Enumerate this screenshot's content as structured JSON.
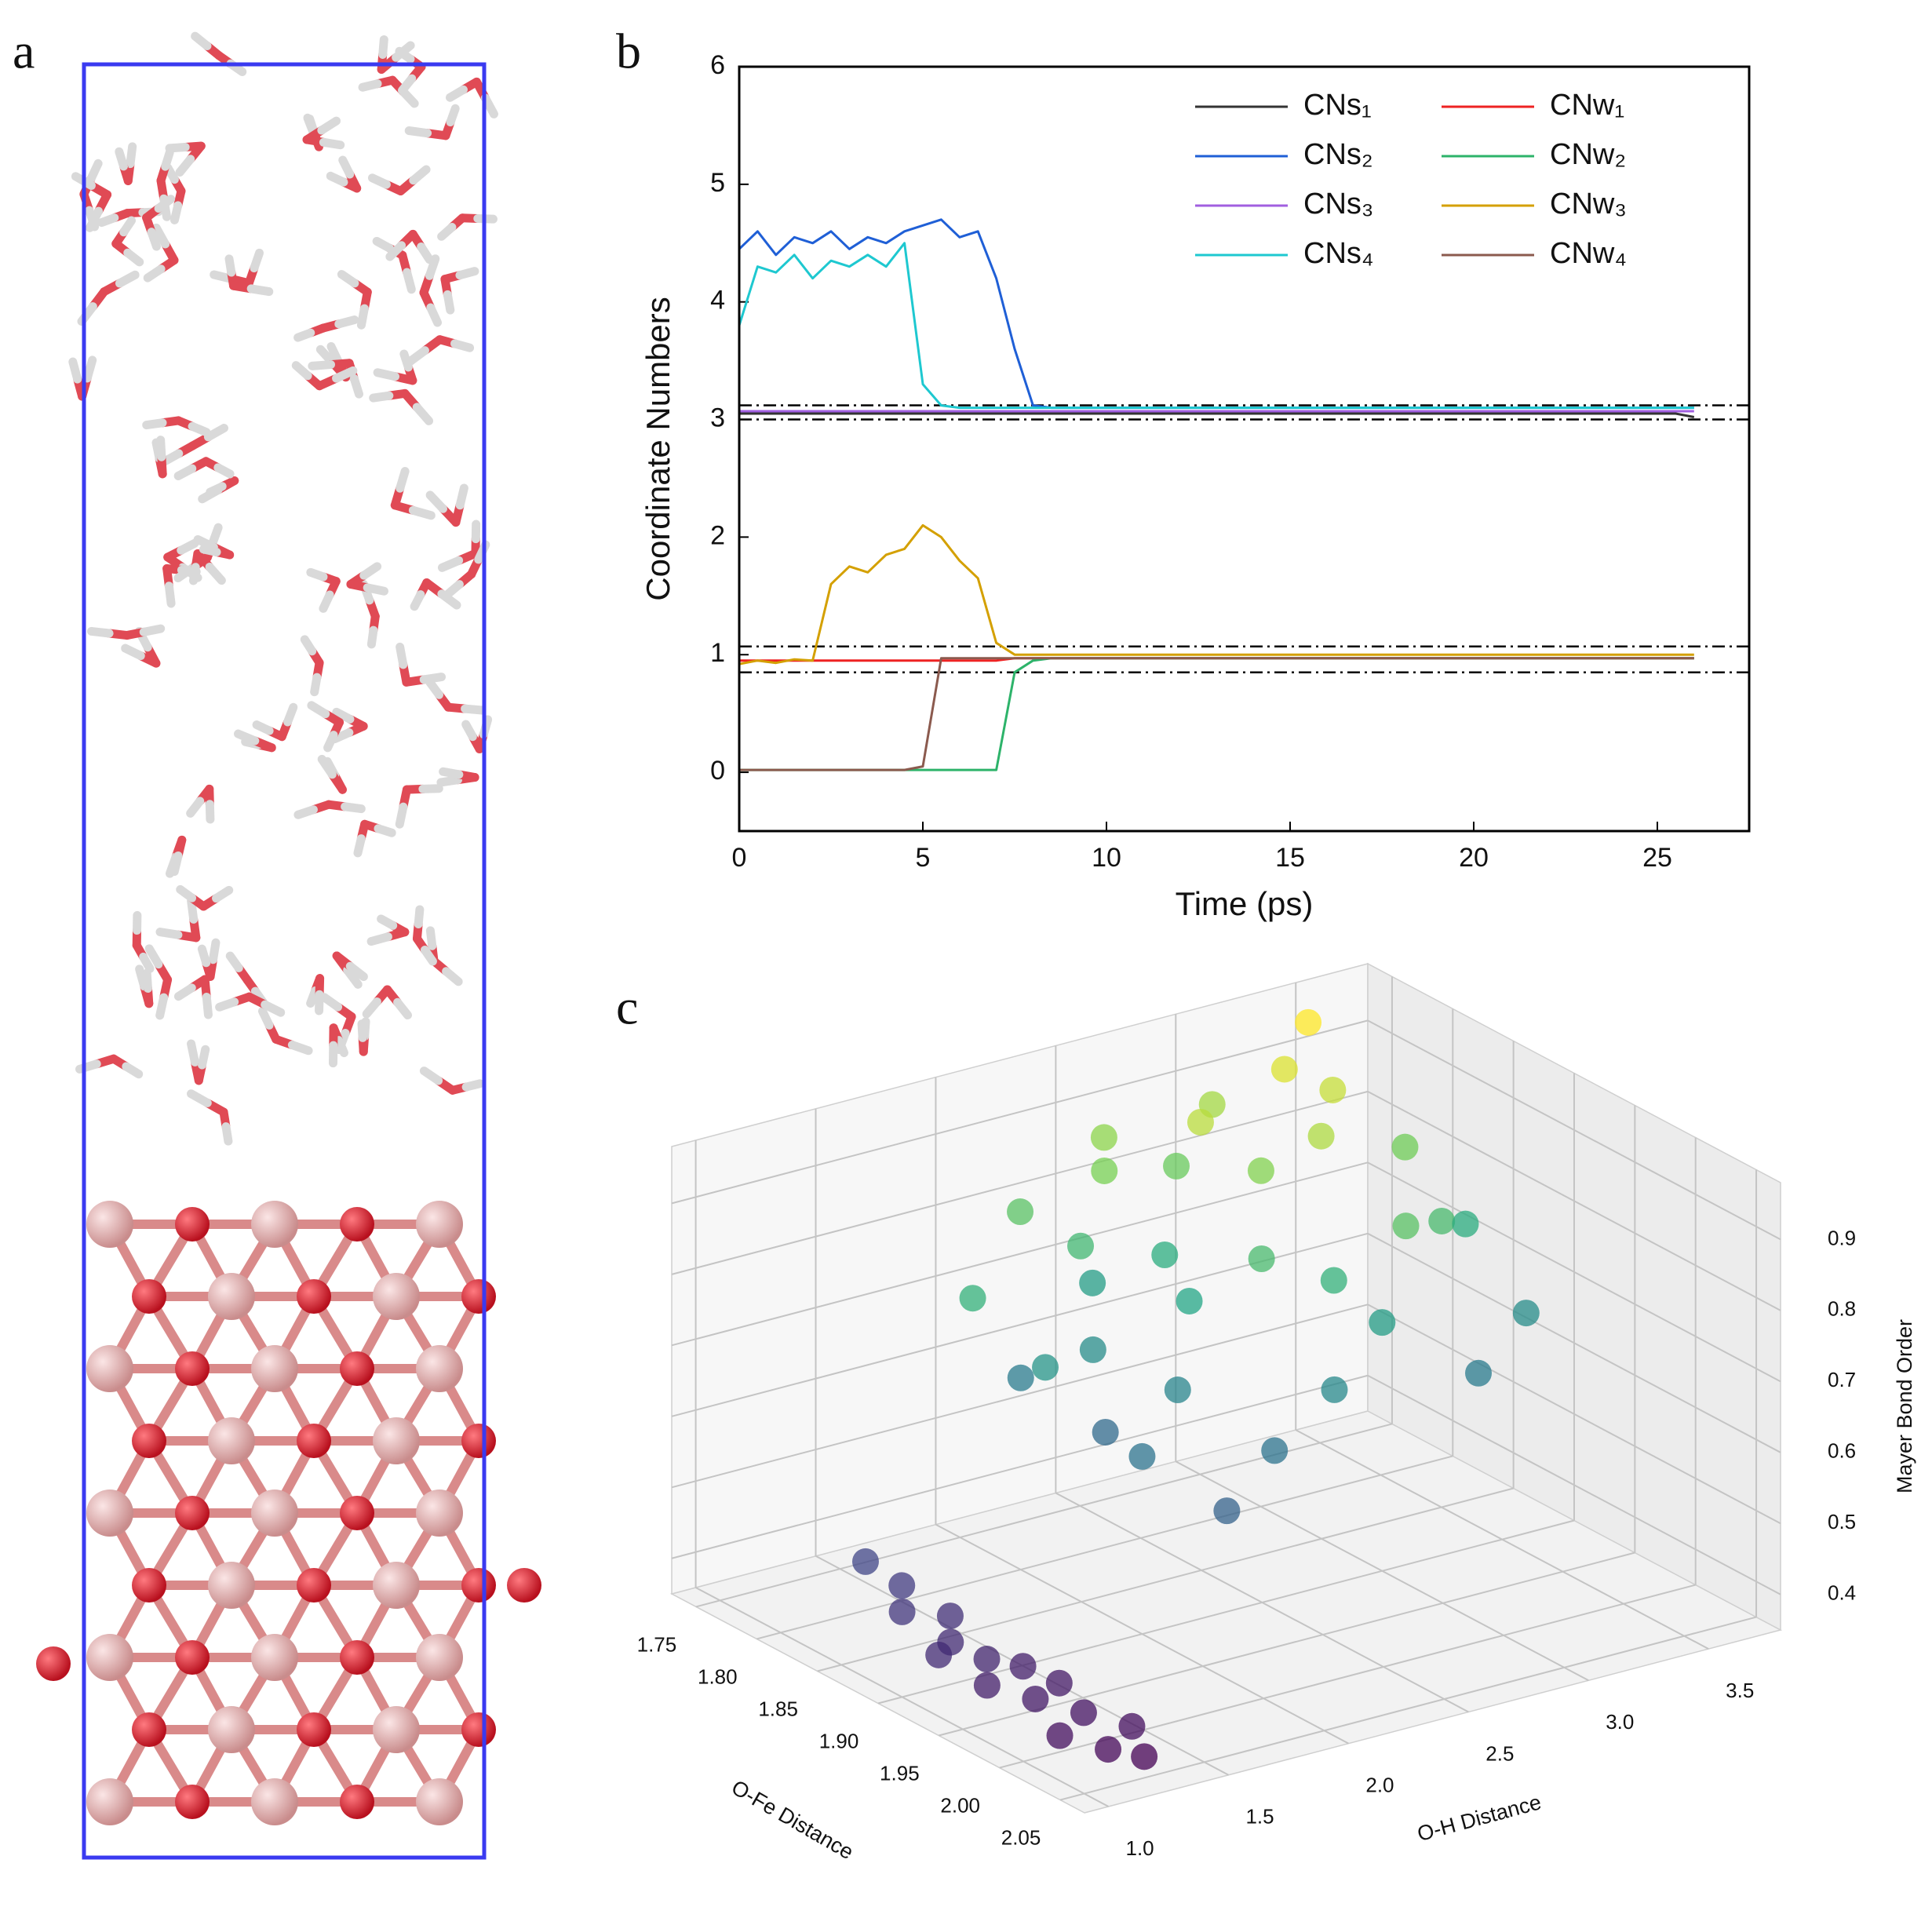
{
  "panel_a": {
    "label": "a"
  },
  "chart_data": [
    {
      "type": "line",
      "panel_label": "b",
      "xlabel": "Time (ps)",
      "ylabel": "Coordinate Numbers",
      "xlim": [
        0,
        27.5
      ],
      "ylim": [
        -0.5,
        6
      ],
      "xticks": [
        0,
        5,
        10,
        15,
        20,
        25
      ],
      "yticks": [
        0,
        1,
        2,
        3,
        4,
        5,
        6
      ],
      "reference_lines": [
        3.12,
        3.0,
        1.07,
        0.85
      ],
      "legend": "upper right",
      "x": [
        0,
        0.5,
        1,
        1.5,
        2,
        2.5,
        3,
        3.5,
        4,
        4.5,
        5,
        5.5,
        6,
        6.5,
        7,
        7.5,
        8,
        8.5,
        9,
        9.5,
        10,
        10.5,
        11,
        11.5,
        12,
        12.5,
        13,
        13.5,
        14,
        14.5,
        15,
        15.5,
        16,
        16.5,
        17,
        17.5,
        18,
        18.5,
        19,
        19.5,
        20,
        20.5,
        21,
        21.5,
        22,
        22.5,
        23,
        23.5,
        24,
        24.5,
        25,
        25.5,
        26
      ],
      "series": [
        {
          "name": "CNs₁",
          "color": "#333333",
          "values": [
            3.05,
            3.05,
            3.05,
            3.05,
            3.05,
            3.05,
            3.05,
            3.05,
            3.05,
            3.05,
            3.05,
            3.05,
            3.05,
            3.05,
            3.05,
            3.05,
            3.05,
            3.05,
            3.05,
            3.05,
            3.05,
            3.05,
            3.05,
            3.05,
            3.05,
            3.05,
            3.05,
            3.05,
            3.05,
            3.05,
            3.05,
            3.05,
            3.05,
            3.05,
            3.05,
            3.05,
            3.05,
            3.05,
            3.05,
            3.05,
            3.05,
            3.05,
            3.05,
            3.05,
            3.05,
            3.05,
            3.05,
            3.05,
            3.05,
            3.05,
            3.05,
            3.05,
            3.02
          ]
        },
        {
          "name": "CNs₂",
          "color": "#1f5fd6",
          "values": [
            4.45,
            4.6,
            4.4,
            4.55,
            4.5,
            4.6,
            4.45,
            4.55,
            4.5,
            4.6,
            4.65,
            4.7,
            4.55,
            4.6,
            4.2,
            3.6,
            3.12,
            3.1,
            3.1,
            3.1,
            3.1,
            3.1,
            3.1,
            3.1,
            3.1,
            3.1,
            3.1,
            3.1,
            3.1,
            3.1,
            3.1,
            3.1,
            3.1,
            3.1,
            3.1,
            3.1,
            3.1,
            3.1,
            3.1,
            3.1,
            3.1,
            3.1,
            3.1,
            3.1,
            3.1,
            3.1,
            3.1,
            3.1,
            3.1,
            3.1,
            3.1,
            3.1,
            3.1
          ]
        },
        {
          "name": "CNs₃",
          "color": "#a15fe0",
          "values": [
            3.07,
            3.07,
            3.07,
            3.07,
            3.07,
            3.07,
            3.07,
            3.07,
            3.07,
            3.07,
            3.07,
            3.07,
            3.07,
            3.07,
            3.07,
            3.07,
            3.07,
            3.07,
            3.07,
            3.07,
            3.07,
            3.07,
            3.07,
            3.07,
            3.07,
            3.07,
            3.07,
            3.07,
            3.07,
            3.07,
            3.07,
            3.07,
            3.07,
            3.07,
            3.07,
            3.07,
            3.07,
            3.07,
            3.07,
            3.07,
            3.07,
            3.07,
            3.07,
            3.07,
            3.07,
            3.07,
            3.07,
            3.07,
            3.07,
            3.07,
            3.07,
            3.07,
            3.07
          ]
        },
        {
          "name": "CNs₄",
          "color": "#1ec8d0",
          "values": [
            3.8,
            4.3,
            4.25,
            4.4,
            4.2,
            4.35,
            4.3,
            4.4,
            4.3,
            4.5,
            3.3,
            3.12,
            3.1,
            3.1,
            3.1,
            3.1,
            3.1,
            3.1,
            3.1,
            3.1,
            3.1,
            3.1,
            3.1,
            3.1,
            3.1,
            3.1,
            3.1,
            3.1,
            3.1,
            3.1,
            3.1,
            3.1,
            3.1,
            3.1,
            3.1,
            3.1,
            3.1,
            3.1,
            3.1,
            3.1,
            3.1,
            3.1,
            3.1,
            3.1,
            3.1,
            3.1,
            3.1,
            3.1,
            3.1,
            3.1,
            3.1,
            3.1,
            3.1
          ]
        },
        {
          "name": "CNw₁",
          "color": "#ee2222",
          "values": [
            0.95,
            0.95,
            0.95,
            0.95,
            0.95,
            0.95,
            0.95,
            0.95,
            0.95,
            0.95,
            0.95,
            0.95,
            0.95,
            0.95,
            0.95,
            0.97,
            0.97,
            0.97,
            0.97,
            0.97,
            0.97,
            0.97,
            0.97,
            0.97,
            0.97,
            0.97,
            0.97,
            0.97,
            0.97,
            0.97,
            0.97,
            0.97,
            0.97,
            0.97,
            0.97,
            0.97,
            0.97,
            0.97,
            0.97,
            0.97,
            0.97,
            0.97,
            0.97,
            0.97,
            0.97,
            0.97,
            0.97,
            0.97,
            0.97,
            0.97,
            0.97,
            0.97,
            0.97
          ]
        },
        {
          "name": "CNw₂",
          "color": "#2db36a",
          "values": [
            0.02,
            0.02,
            0.02,
            0.02,
            0.02,
            0.02,
            0.02,
            0.02,
            0.02,
            0.02,
            0.02,
            0.02,
            0.02,
            0.02,
            0.02,
            0.85,
            0.95,
            0.97,
            0.97,
            0.97,
            0.97,
            0.97,
            0.97,
            0.97,
            0.97,
            0.97,
            0.97,
            0.97,
            0.97,
            0.97,
            0.97,
            0.97,
            0.97,
            0.97,
            0.97,
            0.97,
            0.97,
            0.97,
            0.97,
            0.97,
            0.97,
            0.97,
            0.97,
            0.97,
            0.97,
            0.97,
            0.97,
            0.97,
            0.97,
            0.97,
            0.97,
            0.97,
            0.97
          ]
        },
        {
          "name": "CNw₃",
          "color": "#d4a000",
          "values": [
            0.92,
            0.95,
            0.93,
            0.96,
            0.95,
            1.6,
            1.75,
            1.7,
            1.85,
            1.9,
            2.1,
            2.0,
            1.8,
            1.65,
            1.1,
            1.0,
            1.0,
            1.0,
            1.0,
            1.0,
            1.0,
            1.0,
            1.0,
            1.0,
            1.0,
            1.0,
            1.0,
            1.0,
            1.0,
            1.0,
            1.0,
            1.0,
            1.0,
            1.0,
            1.0,
            1.0,
            1.0,
            1.0,
            1.0,
            1.0,
            1.0,
            1.0,
            1.0,
            1.0,
            1.0,
            1.0,
            1.0,
            1.0,
            1.0,
            1.0,
            1.0,
            1.0,
            1.0
          ]
        },
        {
          "name": "CNw₄",
          "color": "#8b5a4e",
          "values": [
            0.02,
            0.02,
            0.02,
            0.02,
            0.02,
            0.02,
            0.02,
            0.02,
            0.02,
            0.02,
            0.05,
            0.97,
            0.97,
            0.97,
            0.97,
            0.97,
            0.97,
            0.97,
            0.97,
            0.97,
            0.97,
            0.97,
            0.97,
            0.97,
            0.97,
            0.97,
            0.97,
            0.97,
            0.97,
            0.97,
            0.97,
            0.97,
            0.97,
            0.97,
            0.97,
            0.97,
            0.97,
            0.97,
            0.97,
            0.97,
            0.97,
            0.97,
            0.97,
            0.97,
            0.97,
            0.97,
            0.97,
            0.97,
            0.97,
            0.97,
            0.97,
            0.97,
            0.97
          ]
        }
      ]
    },
    {
      "type": "scatter3d",
      "panel_label": "c",
      "xlabel": "O-H Distance",
      "ylabel": "O-Fe Distance",
      "zlabel": "Mayer Bond Order",
      "xlim": [
        0.9,
        3.8
      ],
      "ylim": [
        1.73,
        2.07
      ],
      "zlim": [
        0.35,
        0.98
      ],
      "xticks": [
        {
          "value": 1,
          "label": "1.0"
        },
        1.5,
        {
          "value": 2,
          "label": "2.0"
        },
        2.5,
        {
          "value": 3,
          "label": "3.0"
        },
        3.5
      ],
      "yticks": [
        1.75,
        {
          "value": 1.8,
          "label": "1.80"
        },
        1.85,
        {
          "value": 1.9,
          "label": "1.90"
        },
        1.95,
        {
          "value": 2,
          "label": "2.00"
        },
        2.05
      ],
      "zticks": [
        0.4,
        0.5,
        0.6,
        0.7,
        0.8,
        0.9
      ],
      "colormap": "viridis",
      "x": [
        1.05,
        1.1,
        1.0,
        1.15,
        1.05,
        1.1,
        1.2,
        1.0,
        1.1,
        1.2,
        1.05,
        1.15,
        1.25,
        1.3,
        0.95,
        1.25,
        2.0,
        2.2,
        2.4,
        2.1,
        2.6,
        2.8,
        3.0,
        3.2,
        3.4,
        2.9,
        2.5,
        2.3,
        2.7,
        3.1,
        3.3,
        2.0,
        1.9,
        1.8,
        2.2,
        2.6,
        3.5,
        3.4,
        3.0,
        2.7,
        2.4,
        2.1,
        3.6,
        3.2,
        2.8,
        2.5,
        2.3,
        3.3,
        3.6,
        2.9
      ],
      "y": [
        1.86,
        1.88,
        1.9,
        1.91,
        1.93,
        1.95,
        1.96,
        1.97,
        1.99,
        2.01,
        2.02,
        2.04,
        2.05,
        2.03,
        1.94,
        1.98,
        1.8,
        1.82,
        1.78,
        1.85,
        1.8,
        1.77,
        1.76,
        1.78,
        1.76,
        1.82,
        1.84,
        1.87,
        1.86,
        1.83,
        1.8,
        1.9,
        1.84,
        1.8,
        1.76,
        1.75,
        1.82,
        1.87,
        1.9,
        1.92,
        1.93,
        1.95,
        1.85,
        1.88,
        1.79,
        1.77,
        1.79,
        1.92,
        1.9,
        1.88
      ],
      "z": [
        0.5,
        0.48,
        0.47,
        0.46,
        0.45,
        0.44,
        0.43,
        0.43,
        0.42,
        0.41,
        0.4,
        0.39,
        0.38,
        0.4,
        0.45,
        0.42,
        0.62,
        0.66,
        0.7,
        0.58,
        0.74,
        0.82,
        0.88,
        0.93,
        0.96,
        0.85,
        0.72,
        0.64,
        0.78,
        0.89,
        0.91,
        0.6,
        0.68,
        0.75,
        0.8,
        0.86,
        0.83,
        0.78,
        0.7,
        0.65,
        0.6,
        0.56,
        0.74,
        0.8,
        0.9,
        0.84,
        0.77,
        0.62,
        0.66,
        0.75
      ]
    }
  ]
}
